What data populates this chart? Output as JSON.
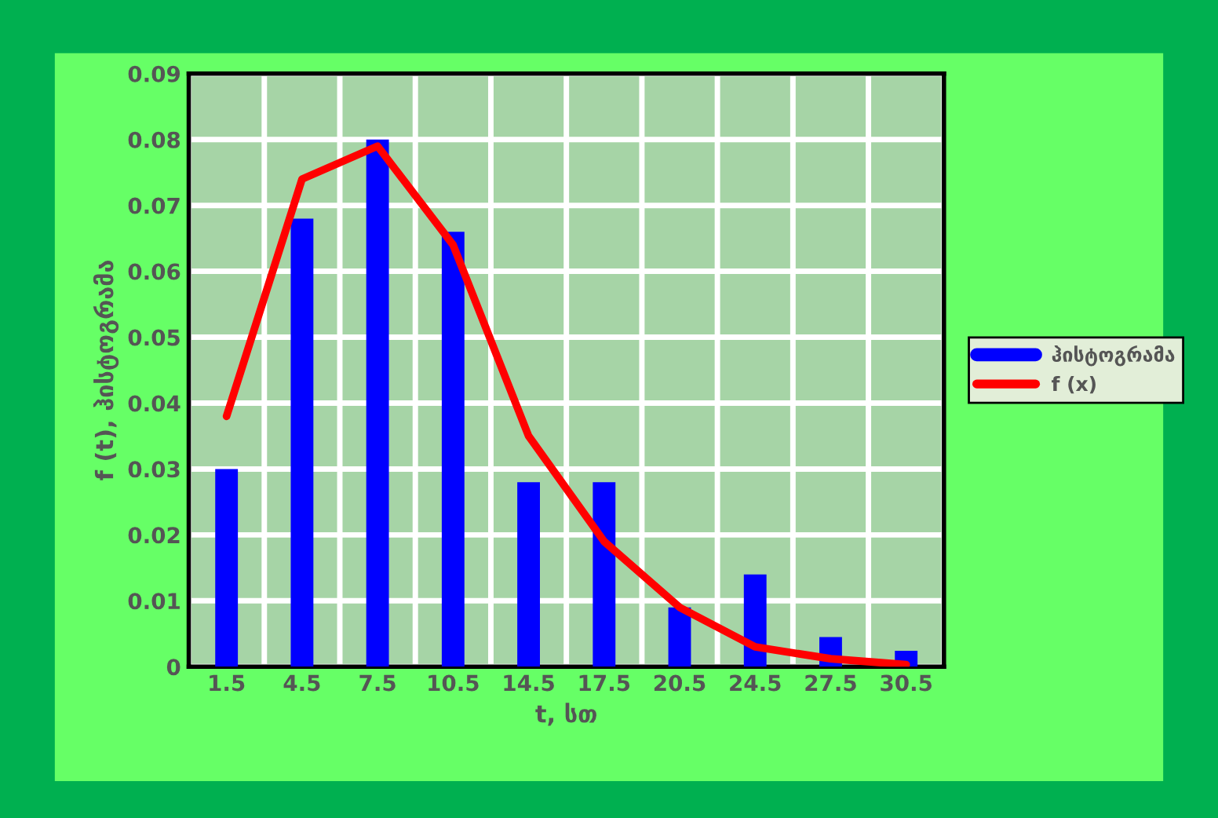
{
  "chart_data": {
    "type": "bar",
    "xlabel": "t, სთ",
    "ylabel": "f (t), ჰისტოგრამა",
    "categories": [
      "1.5",
      "4.5",
      "7.5",
      "10.5",
      "14.5",
      "17.5",
      "20.5",
      "24.5",
      "27.5",
      "30.5"
    ],
    "series": [
      {
        "name": "ჰისტოგრამა",
        "color": "#0000ff",
        "values": [
          0.03,
          0.068,
          0.08,
          0.066,
          0.028,
          0.028,
          0.009,
          0.014,
          0.0045,
          0.0024
        ]
      },
      {
        "name": "f (x)",
        "type": "line",
        "color": "#ff0000",
        "values": [
          0.038,
          0.074,
          0.079,
          0.064,
          0.035,
          0.019,
          0.009,
          0.003,
          0.0012,
          0.0003
        ]
      }
    ],
    "ylim": [
      0,
      0.09
    ],
    "yticks": [
      {
        "value": 0,
        "label": "0"
      },
      0.01,
      0.02,
      0.03,
      0.04,
      0.05,
      0.06,
      0.07,
      0.08,
      0.09
    ],
    "grid": true,
    "legend": "right",
    "marker": "none"
  }
}
